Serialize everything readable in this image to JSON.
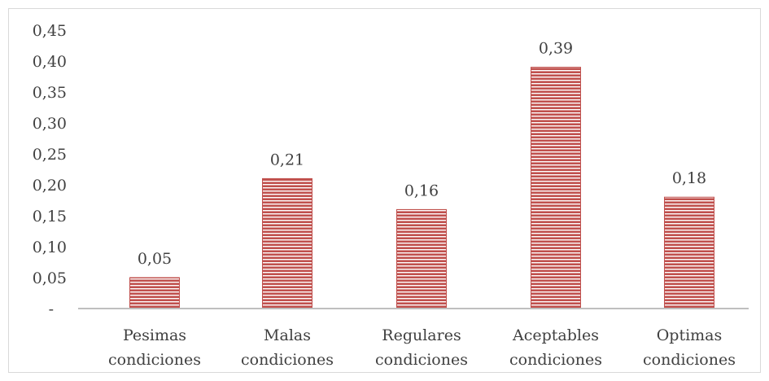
{
  "chart_data": {
    "type": "bar",
    "categories": [
      [
        "Pesimas",
        "condiciones"
      ],
      [
        "Malas",
        "condiciones"
      ],
      [
        "Regulares",
        "condiciones"
      ],
      [
        "Aceptables",
        "condiciones"
      ],
      [
        "Optimas",
        "condiciones"
      ]
    ],
    "values": [
      0.05,
      0.21,
      0.16,
      0.39,
      0.18
    ],
    "value_labels": [
      "0,05",
      "0,21",
      "0,16",
      "0,39",
      "0,18"
    ],
    "y_ticks": [
      "-",
      "0,05",
      "0,10",
      "0,15",
      "0,20",
      "0,25",
      "0,30",
      "0,35",
      "0,40",
      "0,45"
    ],
    "ylim": [
      0,
      0.45
    ],
    "title": "",
    "xlabel": "",
    "ylabel": "",
    "grid": false,
    "legend": "none",
    "colors": {
      "bar_fill": "#c0504d",
      "bar_stripe": "#ffffff",
      "axis": "#bfbfbf",
      "text": "#404040"
    }
  }
}
